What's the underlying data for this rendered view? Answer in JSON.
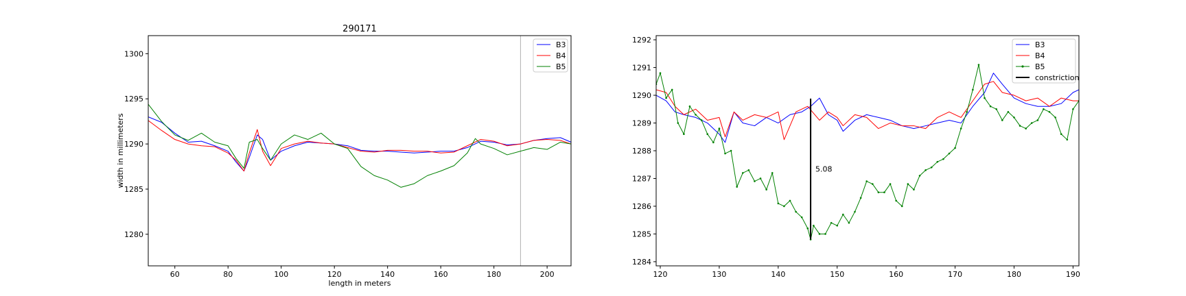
{
  "chart_data": [
    {
      "type": "line",
      "title": "290171",
      "xlabel": "length in meters",
      "ylabel": "width in millimeters",
      "xlim": [
        50,
        209
      ],
      "ylim": [
        1276.5,
        1302
      ],
      "x_ticks": [
        60,
        80,
        100,
        120,
        140,
        160,
        180,
        200
      ],
      "y_ticks": [
        1280,
        1285,
        1290,
        1295,
        1300
      ],
      "vertical_line": 190,
      "grid": false,
      "legend_position": "top-right",
      "series": [
        {
          "name": "B3",
          "color": "#0000ff",
          "x": [
            50,
            55,
            60,
            65,
            70,
            75,
            80,
            83,
            86,
            88,
            91,
            93,
            96,
            100,
            105,
            110,
            115,
            120,
            125,
            130,
            135,
            140,
            145,
            150,
            155,
            160,
            165,
            170,
            175,
            180,
            185,
            190,
            195,
            200,
            205,
            209
          ],
          "y": [
            1293,
            1292.4,
            1291.2,
            1290.2,
            1290.3,
            1289.8,
            1289.2,
            1288,
            1287,
            1288.5,
            1291,
            1290.5,
            1288.2,
            1289.2,
            1289.8,
            1290.2,
            1290.1,
            1290,
            1289.8,
            1289.3,
            1289.2,
            1289.2,
            1289.1,
            1289,
            1289.1,
            1289.2,
            1289.2,
            1289.6,
            1290.3,
            1290.2,
            1289.9,
            1290,
            1290.4,
            1290.6,
            1290.7,
            1290.2
          ]
        },
        {
          "name": "B4",
          "color": "#ff0000",
          "x": [
            50,
            55,
            60,
            65,
            70,
            75,
            80,
            83,
            86,
            88,
            91,
            93,
            96,
            100,
            105,
            110,
            115,
            120,
            125,
            130,
            135,
            140,
            145,
            150,
            155,
            160,
            165,
            170,
            175,
            180,
            185,
            190,
            195,
            200,
            205,
            209
          ],
          "y": [
            1292.6,
            1291.5,
            1290.5,
            1290,
            1289.8,
            1289.7,
            1289,
            1288.2,
            1287,
            1289,
            1291.6,
            1289.2,
            1287.6,
            1289.5,
            1290,
            1290.3,
            1290.1,
            1290,
            1289.6,
            1289.2,
            1289.1,
            1289.3,
            1289.3,
            1289.2,
            1289.2,
            1289,
            1289.1,
            1289.8,
            1290.5,
            1290.3,
            1289.8,
            1290,
            1290.4,
            1290.5,
            1290.4,
            1290
          ]
        },
        {
          "name": "B5",
          "color": "#008000",
          "x": [
            50,
            55,
            60,
            65,
            70,
            75,
            80,
            83,
            86,
            88,
            91,
            93,
            96,
            100,
            105,
            110,
            115,
            120,
            125,
            130,
            135,
            140,
            145,
            150,
            155,
            160,
            165,
            170,
            173,
            175,
            180,
            185,
            190,
            195,
            200,
            205,
            209
          ],
          "y": [
            1294.4,
            1292.5,
            1291,
            1290.4,
            1291.2,
            1290.2,
            1289.8,
            1288.4,
            1287.3,
            1290.2,
            1290.5,
            1289.5,
            1288.2,
            1290,
            1291,
            1290.5,
            1291.2,
            1290,
            1289.5,
            1287.5,
            1286.5,
            1286,
            1285.2,
            1285.6,
            1286.5,
            1287,
            1287.6,
            1289,
            1290.6,
            1290,
            1289.5,
            1288.8,
            1289.2,
            1289.6,
            1289.4,
            1290.2,
            1290
          ]
        }
      ]
    },
    {
      "type": "line",
      "title": "",
      "xlabel": "",
      "ylabel": "",
      "xlim": [
        119.3,
        191
      ],
      "ylim": [
        1283.85,
        1292.15
      ],
      "x_ticks": [
        120,
        130,
        140,
        150,
        160,
        170,
        180,
        190
      ],
      "y_ticks": [
        1284,
        1285,
        1286,
        1287,
        1288,
        1289,
        1290,
        1291,
        1292
      ],
      "grid": false,
      "legend_position": "top-right",
      "series": [
        {
          "name": "B3",
          "color": "#0000ff",
          "markers": false,
          "x": [
            119.3,
            121,
            122.5,
            124,
            126,
            128,
            130,
            131,
            132.5,
            134,
            136,
            138,
            140,
            142,
            144,
            145.5,
            147,
            148.5,
            150,
            151,
            153,
            155,
            157,
            159,
            161,
            163,
            165,
            167,
            169,
            171,
            173,
            175,
            176.5,
            178,
            180,
            182,
            184,
            186,
            188,
            190,
            191
          ],
          "y": [
            1290,
            1289.8,
            1289.4,
            1289.3,
            1289.2,
            1289,
            1288.6,
            1288.3,
            1289.4,
            1289,
            1288.9,
            1289.2,
            1289,
            1289.3,
            1289.4,
            1289.6,
            1289.9,
            1289.3,
            1289.1,
            1288.7,
            1289.1,
            1289.3,
            1289.2,
            1289.1,
            1288.9,
            1288.8,
            1288.9,
            1289,
            1289.1,
            1289,
            1289.6,
            1290.1,
            1290.8,
            1290.4,
            1289.9,
            1289.7,
            1289.6,
            1289.6,
            1289.7,
            1290.1,
            1290.2
          ]
        },
        {
          "name": "B4",
          "color": "#ff0000",
          "markers": false,
          "x": [
            119.3,
            121,
            122.5,
            124,
            126,
            128,
            130,
            131,
            132.5,
            134,
            136,
            138,
            140,
            141,
            143,
            145,
            147,
            148.5,
            150,
            151,
            153,
            155,
            157,
            159,
            161,
            163,
            165,
            167,
            169,
            171,
            173,
            175,
            176.5,
            178,
            180,
            182,
            184,
            186,
            188,
            190,
            191
          ],
          "y": [
            1290.2,
            1290.1,
            1289.6,
            1289.3,
            1289.5,
            1289.1,
            1289.2,
            1288.5,
            1289.4,
            1289.1,
            1289.3,
            1289.2,
            1289.4,
            1288.4,
            1289.4,
            1289.6,
            1289.1,
            1289.4,
            1289.2,
            1288.9,
            1289.3,
            1289.2,
            1288.8,
            1289,
            1288.9,
            1288.9,
            1288.8,
            1289.2,
            1289.4,
            1289.2,
            1289.8,
            1290.4,
            1290.5,
            1290.1,
            1290,
            1289.8,
            1289.9,
            1289.6,
            1289.9,
            1289.8,
            1289.8
          ]
        },
        {
          "name": "B5",
          "color": "#008000",
          "markers": true,
          "x": [
            119.3,
            120,
            121,
            122,
            123,
            124,
            125,
            126,
            127,
            128,
            129,
            130,
            131,
            132,
            133,
            134,
            135,
            136,
            137,
            138,
            139,
            140,
            141,
            142,
            143,
            144,
            145,
            145.5,
            146,
            147,
            148,
            149,
            150,
            151,
            152,
            153,
            154,
            155,
            156,
            157,
            158,
            159,
            160,
            161,
            162,
            163,
            164,
            165,
            166,
            167,
            168,
            169,
            170,
            171,
            172,
            173,
            174,
            175,
            176,
            177,
            178,
            179,
            180,
            181,
            182,
            183,
            184,
            185,
            186,
            187,
            188,
            189,
            190,
            191
          ],
          "y": [
            1290.4,
            1290.8,
            1289.9,
            1290.2,
            1289,
            1288.6,
            1289.6,
            1289.3,
            1289.1,
            1288.6,
            1288.3,
            1288.8,
            1287.9,
            1288,
            1286.7,
            1287.2,
            1287.3,
            1286.9,
            1287,
            1286.6,
            1287.2,
            1286.1,
            1286,
            1286.2,
            1285.8,
            1285.6,
            1285.2,
            1284.8,
            1285.3,
            1285,
            1285,
            1285.4,
            1285.3,
            1285.7,
            1285.4,
            1285.8,
            1286.3,
            1286.9,
            1286.8,
            1286.5,
            1286.5,
            1286.8,
            1286.2,
            1286,
            1286.8,
            1286.6,
            1287.1,
            1287.3,
            1287.4,
            1287.6,
            1287.7,
            1287.9,
            1288.1,
            1288.8,
            1289.4,
            1290.2,
            1291.1,
            1289.9,
            1289.6,
            1289.5,
            1289.1,
            1289.4,
            1289.2,
            1288.9,
            1288.8,
            1289,
            1289.1,
            1289.5,
            1289.4,
            1289.2,
            1288.6,
            1288.4,
            1289.5,
            1289.8
          ]
        },
        {
          "name": "constriction",
          "color": "#000000",
          "markers": false,
          "x": [
            145.5,
            145.5
          ],
          "y": [
            1289.88,
            1284.8
          ]
        }
      ],
      "annotations": [
        {
          "text": "5.08",
          "x": 146.3,
          "y": 1287.35
        }
      ]
    }
  ]
}
